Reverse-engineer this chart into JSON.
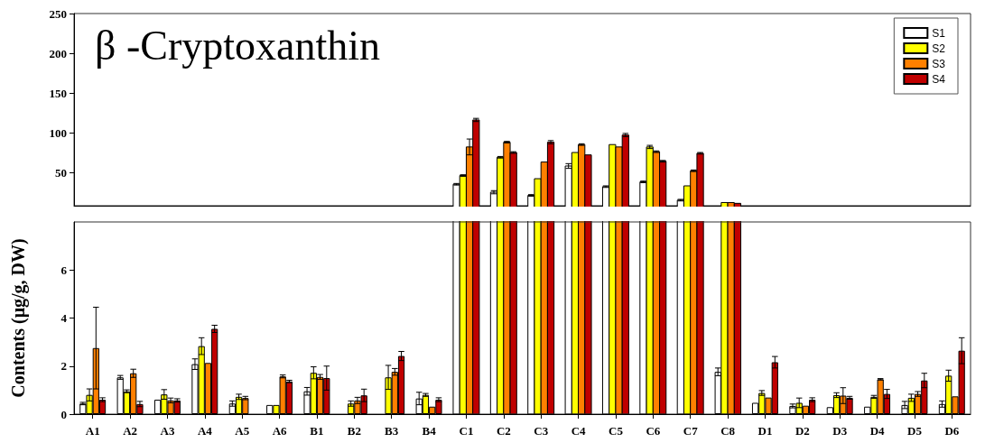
{
  "chart_data": [
    {
      "type": "bar",
      "title": "β -Cryptoxanthin",
      "categories": [
        null,
        null,
        null,
        null,
        null,
        null,
        null,
        null,
        null,
        null,
        null,
        null,
        null,
        null,
        null,
        null,
        null,
        null,
        null,
        null,
        null,
        null,
        null,
        null
      ],
      "ylim": [
        8,
        250
      ],
      "yticks": [
        50,
        100,
        150,
        200,
        250
      ],
      "legend": "top right",
      "series": [
        {
          "name": "S1",
          "color": "#ffffff",
          "values": [
            null,
            null,
            null,
            null,
            null,
            null,
            null,
            null,
            null,
            null,
            35,
            25,
            21,
            58,
            32,
            38,
            15,
            null,
            null,
            null,
            null,
            null,
            null,
            null
          ],
          "errors": [
            null,
            null,
            null,
            null,
            null,
            null,
            null,
            null,
            null,
            null,
            1,
            2,
            1,
            3,
            1,
            1,
            1,
            null,
            null,
            null,
            null,
            null,
            null,
            null
          ]
        },
        {
          "name": "S2",
          "color": "#ffff00",
          "values": [
            null,
            null,
            null,
            null,
            null,
            null,
            null,
            null,
            null,
            null,
            46,
            69,
            42,
            75,
            85,
            82,
            33,
            12,
            null,
            null,
            null,
            null,
            null,
            null
          ],
          "errors": [
            null,
            null,
            null,
            null,
            null,
            null,
            null,
            null,
            null,
            null,
            1,
            1,
            null,
            null,
            null,
            2,
            null,
            null,
            null,
            null,
            null,
            null,
            null,
            null
          ]
        },
        {
          "name": "S3",
          "color": "#ff8000",
          "values": [
            null,
            null,
            null,
            null,
            null,
            null,
            null,
            null,
            null,
            null,
            82,
            88,
            63,
            85,
            82,
            76,
            52,
            12,
            null,
            null,
            null,
            null,
            null,
            null
          ],
          "errors": [
            null,
            null,
            null,
            null,
            null,
            null,
            null,
            null,
            null,
            null,
            10,
            1,
            null,
            1,
            null,
            1,
            1,
            null,
            null,
            null,
            null,
            null,
            null,
            null
          ]
        },
        {
          "name": "S4",
          "color": "#c00000",
          "values": [
            null,
            null,
            null,
            null,
            null,
            null,
            null,
            null,
            null,
            null,
            116,
            75,
            88,
            72,
            97,
            64,
            74,
            11,
            null,
            null,
            null,
            null,
            null,
            null
          ],
          "errors": [
            null,
            null,
            null,
            null,
            null,
            null,
            null,
            null,
            null,
            null,
            2,
            1,
            2,
            null,
            2,
            1,
            1,
            null,
            null,
            null,
            null,
            null,
            null,
            null
          ]
        }
      ]
    },
    {
      "type": "bar",
      "ylabel": "Contents (μg/g, DW)",
      "categories": [
        "A1",
        "A2",
        "A3",
        "A4",
        "A5",
        "A6",
        "B1",
        "B2",
        "B3",
        "B4",
        "C1",
        "C2",
        "C3",
        "C4",
        "C5",
        "C6",
        "C7",
        "C8",
        "D1",
        "D2",
        "D3",
        "D4",
        "D5",
        "D6"
      ],
      "ylim": [
        0,
        8
      ],
      "yticks": [
        0,
        2,
        4,
        6
      ],
      "series": [
        {
          "color": "#ffffff",
          "values": [
            0.44,
            1.53,
            0.6,
            2.08,
            0.44,
            0.38,
            0.95,
            null,
            null,
            0.65,
            null,
            null,
            null,
            null,
            null,
            null,
            null,
            1.76,
            0.47,
            0.34,
            0.29,
            0.31,
            0.38,
            0.42
          ],
          "errors": [
            0.05,
            0.08,
            null,
            0.22,
            0.11,
            null,
            0.16,
            null,
            null,
            0.26,
            null,
            null,
            null,
            null,
            null,
            null,
            null,
            0.16,
            null,
            0.08,
            null,
            null,
            0.15,
            0.13
          ]
        },
        {
          "color": "#ffff00",
          "values": [
            0.8,
            0.95,
            0.82,
            2.83,
            0.72,
            0.38,
            1.72,
            0.44,
            1.53,
            0.8,
            null,
            null,
            null,
            null,
            null,
            null,
            null,
            null,
            0.88,
            0.47,
            0.79,
            0.72,
            0.68,
            1.6
          ],
          "errors": [
            0.25,
            0.06,
            0.2,
            0.35,
            0.11,
            null,
            0.25,
            0.11,
            0.5,
            0.06,
            null,
            null,
            null,
            null,
            null,
            null,
            null,
            null,
            0.1,
            0.2,
            0.1,
            0.06,
            0.15,
            0.23
          ]
        },
        {
          "color": "#ff8000",
          "values": [
            2.75,
            1.7,
            0.57,
            2.13,
            0.67,
            1.57,
            1.55,
            0.57,
            1.76,
            0.31,
            null,
            null,
            null,
            null,
            null,
            null,
            null,
            null,
            0.69,
            0.35,
            0.77,
            1.45,
            0.84,
            0.74
          ],
          "errors": [
            1.7,
            0.17,
            0.1,
            null,
            0.07,
            0.06,
            0.1,
            0.13,
            0.14,
            null,
            null,
            null,
            null,
            null,
            null,
            null,
            null,
            null,
            null,
            null,
            0.33,
            0.03,
            0.1,
            null
          ]
        },
        {
          "color": "#c00000",
          "values": [
            0.6,
            0.42,
            0.57,
            3.55,
            null,
            1.36,
            1.5,
            0.78,
            2.42,
            0.6,
            null,
            null,
            null,
            null,
            null,
            null,
            null,
            null,
            2.16,
            0.6,
            0.68,
            0.84,
            1.4,
            2.64
          ],
          "errors": [
            0.08,
            0.11,
            0.07,
            0.15,
            null,
            0.05,
            0.5,
            0.26,
            0.19,
            0.08,
            null,
            null,
            null,
            null,
            null,
            null,
            null,
            null,
            0.24,
            0.08,
            0.06,
            0.19,
            0.3,
            0.54
          ]
        }
      ]
    }
  ]
}
